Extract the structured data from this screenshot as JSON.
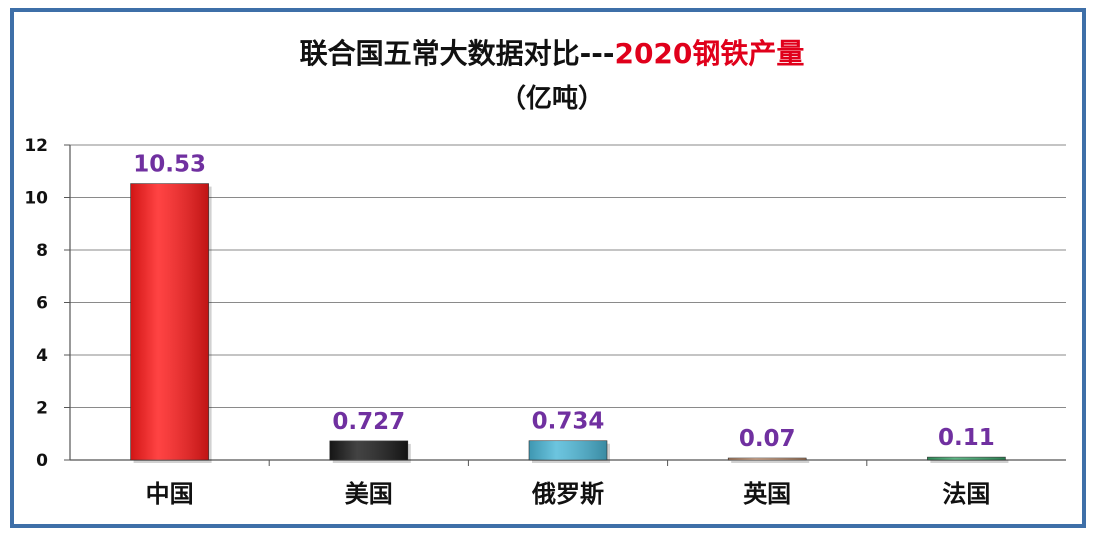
{
  "chart_data": {
    "type": "bar",
    "title_prefix": "联合国五常大数据对比---",
    "title_highlight": "2020钢铁产量",
    "subtitle": "（亿吨）",
    "categories": [
      "中国",
      "美国",
      "俄罗斯",
      "英国",
      "法国"
    ],
    "values": [
      10.53,
      0.727,
      0.734,
      0.07,
      0.11
    ],
    "data_labels": [
      "10.53",
      "0.727",
      "0.734",
      "0.07",
      "0.11"
    ],
    "bar_colors": [
      "#ff1a1a",
      "#1a1a1a",
      "#4cb8d8",
      "#d9a07a",
      "#3aa86b"
    ],
    "label_color": "#7030a0",
    "highlight_color": "#e0001b",
    "frame_color": "#3e6fa8",
    "ylim": [
      0,
      12
    ],
    "yticks": [
      0,
      2,
      4,
      6,
      8,
      10,
      12
    ],
    "xlabel": "",
    "ylabel": "",
    "grid": true,
    "legend": "none"
  }
}
